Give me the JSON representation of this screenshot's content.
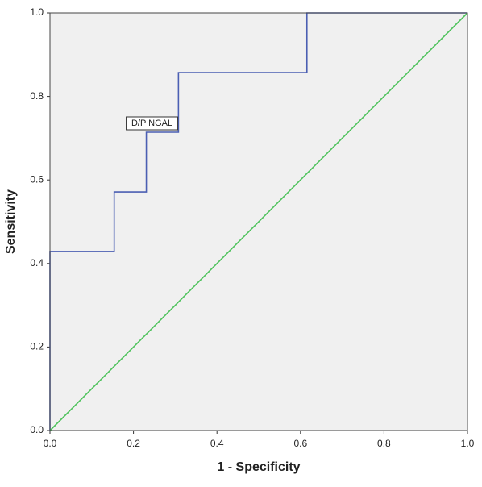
{
  "chart_data": {
    "type": "line",
    "x_label": "1 - Specificity",
    "y_label": "Sensitivity",
    "annotation": "D/P NGAL",
    "series": [
      {
        "color": "#4b5fb3",
        "step": true,
        "x": [
          0,
          0,
          0.1538,
          0.1538,
          0.2308,
          0.2308,
          0.3077,
          0.3077,
          0.6154,
          0.6154,
          1
        ],
        "values": [
          0,
          0.4286,
          0.4286,
          0.5714,
          0.5714,
          0.7143,
          0.7143,
          0.8571,
          0.8571,
          1,
          1
        ]
      },
      {
        "color": "#4dc25b",
        "step": false,
        "x": [
          0,
          1
        ],
        "values": [
          0,
          1
        ]
      }
    ],
    "xlim": [
      0,
      1
    ],
    "ylim": [
      0,
      1
    ],
    "xticks": [
      {
        "value": 0,
        "label": "0.0"
      },
      {
        "value": 0.2,
        "label": "0.2"
      },
      {
        "value": 0.4,
        "label": "0.4"
      },
      {
        "value": 0.6,
        "label": "0.6"
      },
      {
        "value": 0.8,
        "label": "0.8"
      },
      {
        "value": 1,
        "label": "1.0"
      }
    ],
    "yticks": [
      {
        "value": 0,
        "label": "0.0"
      },
      {
        "value": 0.2,
        "label": "0.2"
      },
      {
        "value": 0.4,
        "label": "0.4"
      },
      {
        "value": 0.6,
        "label": "0.6"
      },
      {
        "value": 0.8,
        "label": "0.8"
      },
      {
        "value": 1,
        "label": "1.0"
      }
    ],
    "grid": false,
    "background": "#f0f0f0"
  }
}
